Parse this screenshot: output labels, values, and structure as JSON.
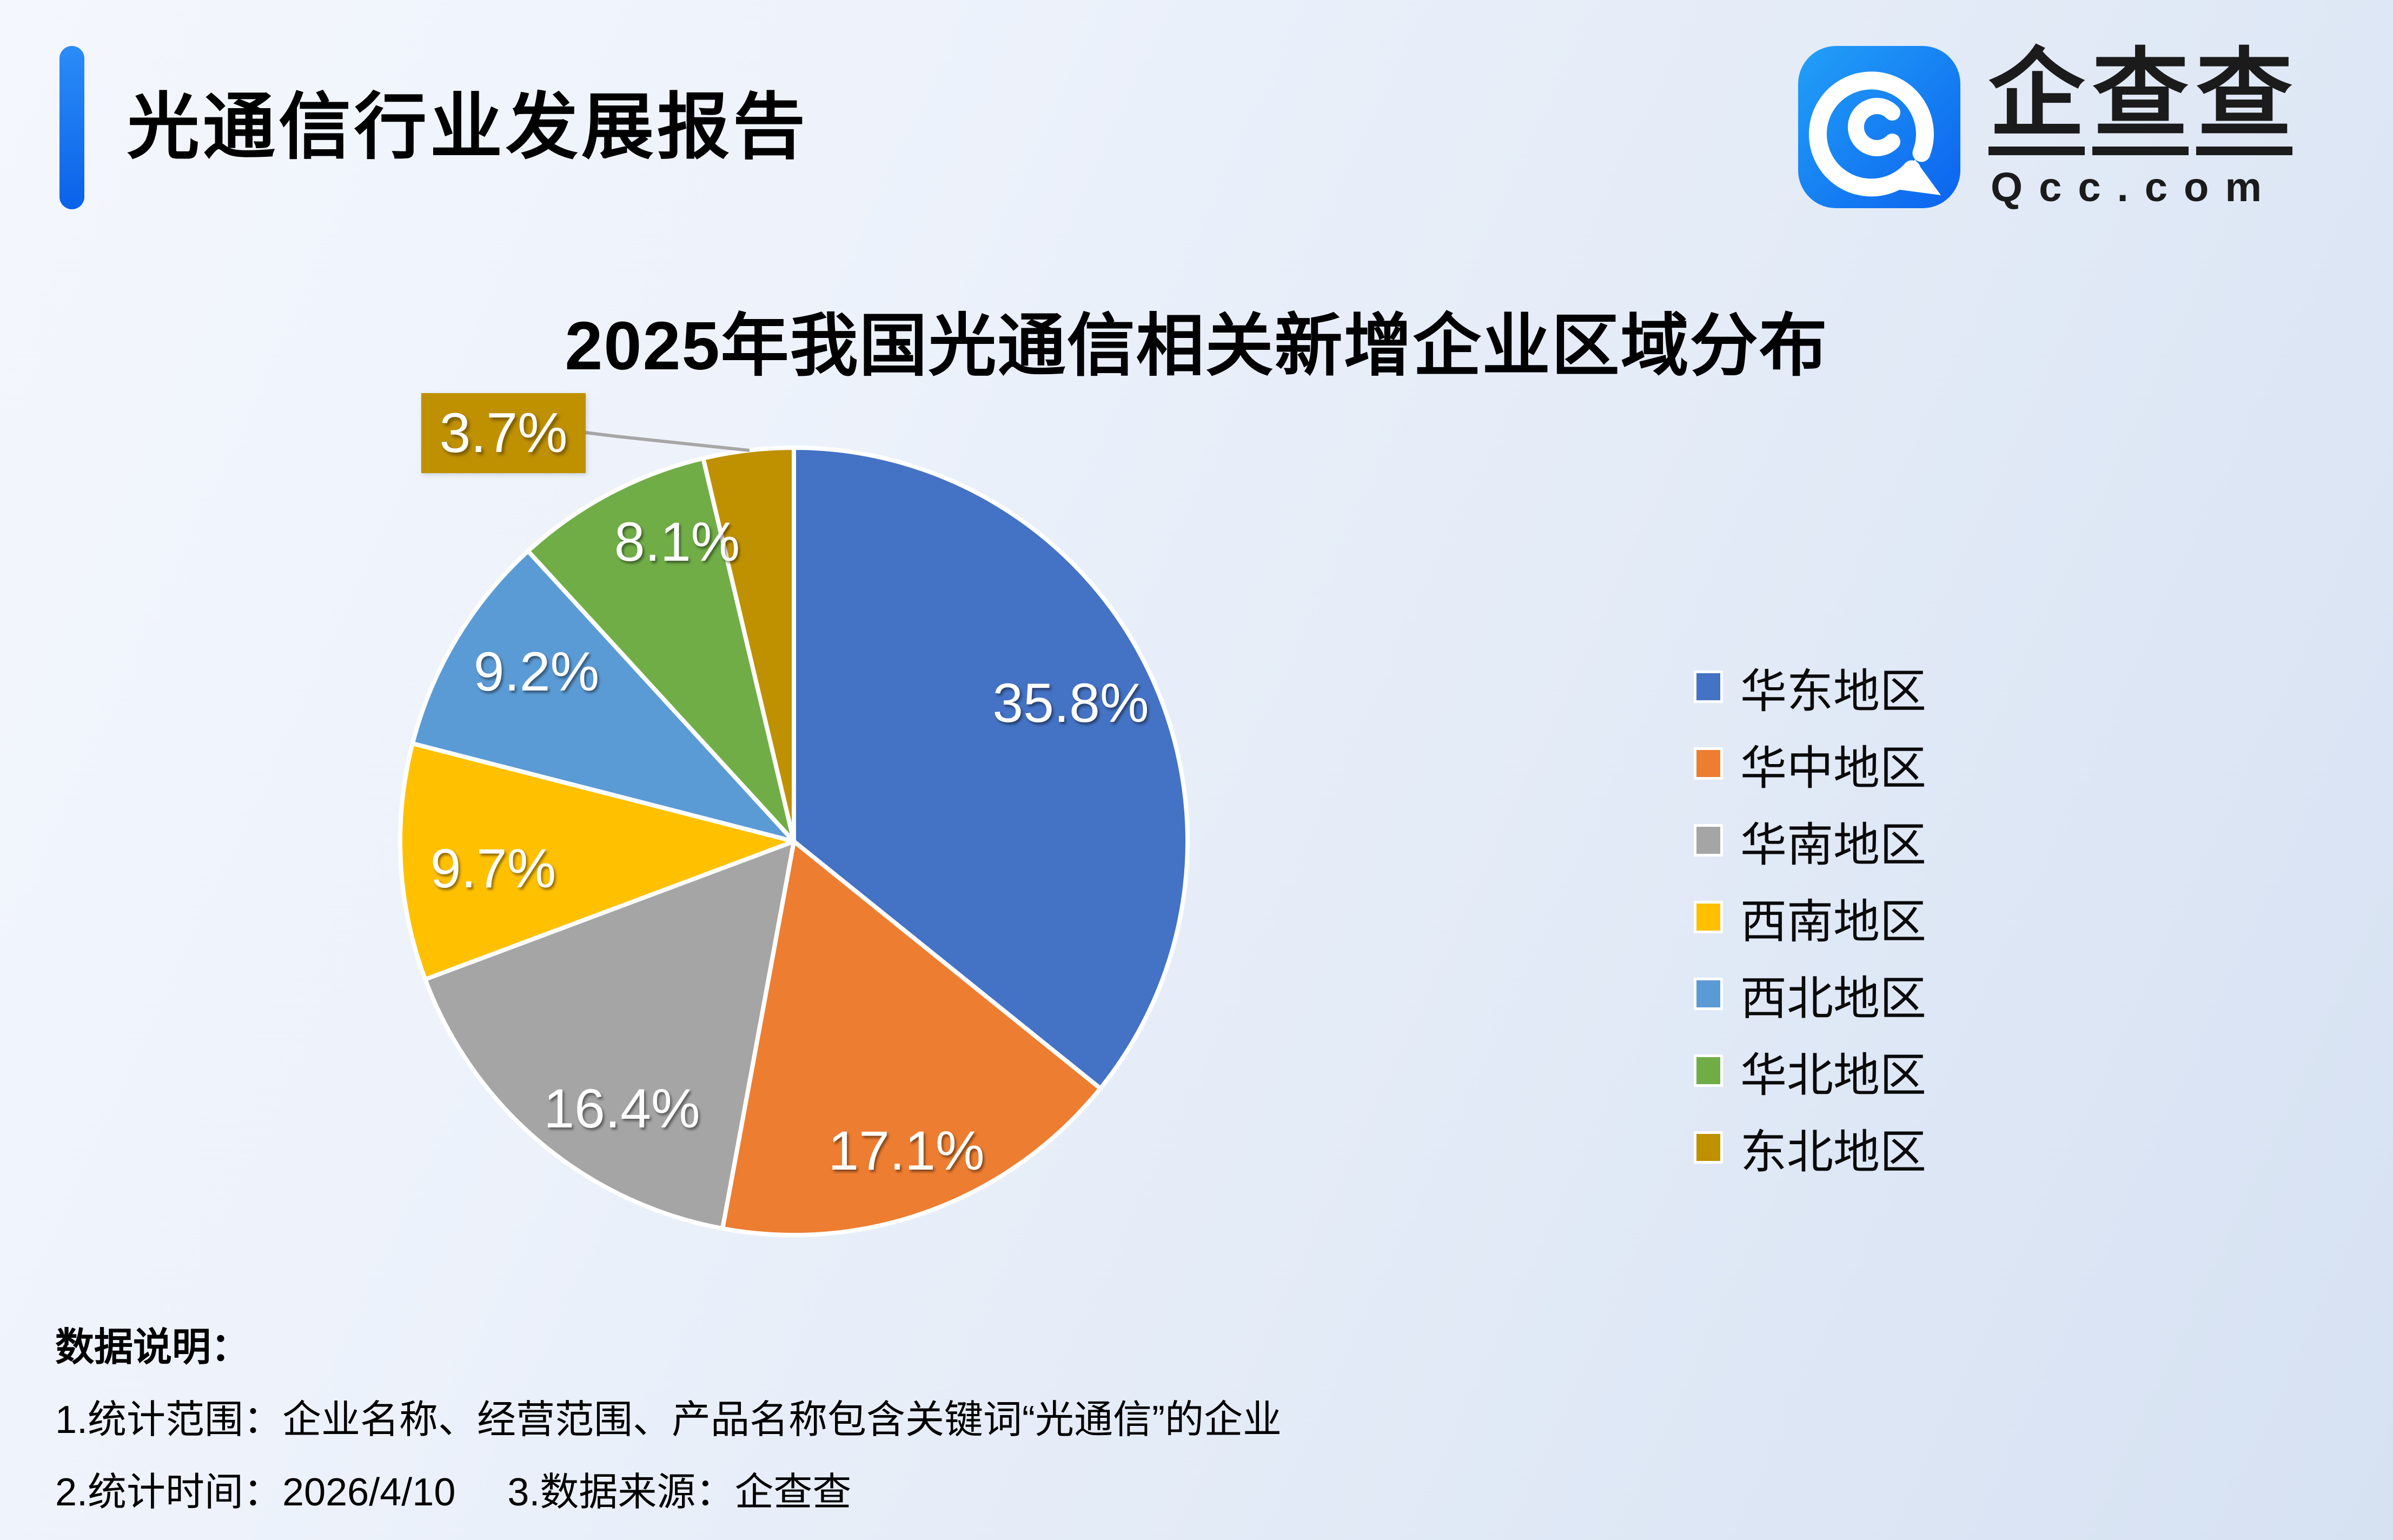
{
  "header": {
    "report_title": "光通信行业发展报告"
  },
  "brand": {
    "chars": [
      "企",
      "查",
      "查"
    ],
    "domain": "Qcc.com",
    "icon": "qcc-spiral-logo",
    "icon_color": "#0e6cf0"
  },
  "chart_data": {
    "type": "pie",
    "title": "2025年我国光通信相关新增企业区域分布",
    "categories": [
      "华东地区",
      "华中地区",
      "华南地区",
      "西南地区",
      "西北地区",
      "华北地区",
      "东北地区"
    ],
    "values": [
      35.8,
      17.1,
      16.4,
      9.7,
      9.2,
      8.1,
      3.7
    ],
    "unit": "%",
    "labels": [
      "35.8%",
      "17.1%",
      "16.4%",
      "9.7%",
      "9.2%",
      "8.1%",
      "3.7%"
    ],
    "colors": [
      "#4472C4",
      "#ED7D31",
      "#A5A5A5",
      "#FFC000",
      "#5B9BD5",
      "#70AD47",
      "#BF9000"
    ],
    "start_angle_deg": 0,
    "direction": "clockwise",
    "legend_position": "right",
    "callout": {
      "label": "3.7%",
      "category": "东北地区",
      "leader_line_color": "#A6A6A6"
    }
  },
  "footer": {
    "heading": "数据说明：",
    "line1": "1.统计范围：企业名称、经营范围、产品名称包含关键词“光通信”的企业",
    "line2_part1": "2.统计时间：2026/4/10",
    "line2_part2": "3.数据来源：企查查"
  }
}
